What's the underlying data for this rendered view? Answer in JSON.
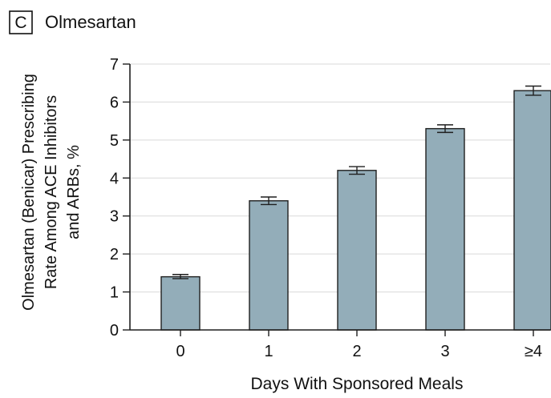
{
  "panel": {
    "letter": "C",
    "title": "Olmesartan"
  },
  "chart_data": {
    "type": "bar",
    "title": "Olmesartan",
    "xlabel": "Days With Sponsored Meals",
    "ylabel_lines": [
      "Olmesartan (Benicar) Prescribing",
      "Rate Among ACE Inhibitors",
      "and ARBs, %"
    ],
    "categories": [
      "0",
      "1",
      "2",
      "3",
      "≥4"
    ],
    "values": [
      1.4,
      3.4,
      4.2,
      5.3,
      6.3
    ],
    "error_low": [
      1.35,
      3.3,
      4.1,
      5.2,
      6.18
    ],
    "error_high": [
      1.46,
      3.5,
      4.3,
      5.4,
      6.42
    ],
    "ylim": [
      0,
      7
    ],
    "yticks": [
      0,
      1,
      2,
      3,
      4,
      5,
      6,
      7
    ],
    "grid": true,
    "colors": {
      "bar_fill": "#93adb9",
      "bar_stroke": "#1f1f1f",
      "grid": "#d9d9d9",
      "axis": "#1f1f1f",
      "error": "#1f1f1f"
    }
  }
}
